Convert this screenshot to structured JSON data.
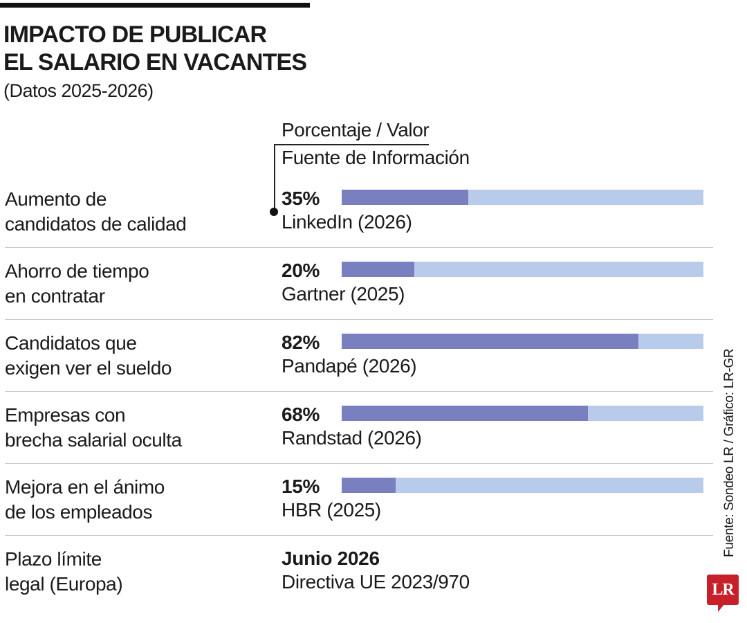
{
  "title_lines": [
    "IMPACTO DE PUBLICAR",
    "EL SALARIO EN VACANTES"
  ],
  "subtitle": "(Datos 2025-2026)",
  "legend": {
    "value_header": "Porcentaje / Valor",
    "source_header": "Fuente de Información"
  },
  "colors": {
    "bar_fill": "#7a80bf",
    "bar_track": "#b9cbea",
    "logo": "#c8202a"
  },
  "chart_data": {
    "type": "bar",
    "orientation": "horizontal",
    "xlim": [
      0,
      100
    ],
    "categories": [
      "Aumento de candidatos de calidad",
      "Ahorro de tiempo en contratar",
      "Candidatos que exigen ver el sueldo",
      "Empresas con brecha salarial oculta",
      "Mejora en el ánimo de los empleados"
    ],
    "values": [
      35,
      20,
      82,
      68,
      15
    ],
    "rows": [
      {
        "label": [
          "Aumento de",
          "candidatos de calidad"
        ],
        "value_label": "35%",
        "value": 35,
        "source": "LinkedIn (2026)"
      },
      {
        "label": [
          "Ahorro de tiempo",
          "en contratar"
        ],
        "value_label": "20%",
        "value": 20,
        "source": "Gartner (2025)"
      },
      {
        "label": [
          "Candidatos que",
          "exigen ver el sueldo"
        ],
        "value_label": "82%",
        "value": 82,
        "source": "Pandapé (2026)"
      },
      {
        "label": [
          "Empresas con",
          "brecha salarial oculta"
        ],
        "value_label": "68%",
        "value": 68,
        "source": "Randstad (2026)"
      },
      {
        "label": [
          "Mejora en el ánimo",
          "de los empleados"
        ],
        "value_label": "15%",
        "value": 15,
        "source": "HBR (2025)"
      },
      {
        "label": [
          "Plazo límite",
          "legal (Europa)"
        ],
        "value_label": "Junio 2026",
        "source": "Directiva UE 2023/970"
      }
    ]
  },
  "credit": "Fuente: Sondeo LR / Gráfico: LR-GR",
  "logo": "LR"
}
